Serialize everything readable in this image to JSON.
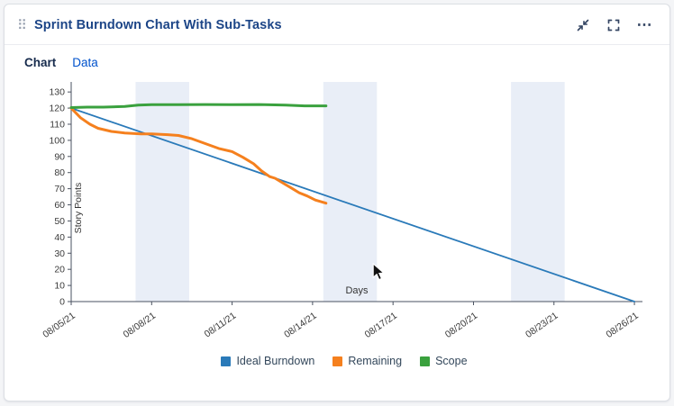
{
  "card": {
    "title": "Sprint Burndown Chart With Sub-Tasks",
    "actions": {
      "drag_glyph": "⠿",
      "more_glyph": "⋯"
    },
    "tabs": [
      {
        "label": "Chart",
        "active": true
      },
      {
        "label": "Data",
        "active": false
      }
    ]
  },
  "chart_data": {
    "type": "line",
    "title": "",
    "xlabel": "Days",
    "ylabel": "Story Points",
    "x_axis": {
      "tick_days": [
        0,
        3,
        6,
        9,
        12,
        15,
        18,
        21
      ],
      "tick_labels": [
        "08/05/21",
        "08/08/21",
        "08/11/21",
        "08/14/21",
        "08/17/21",
        "08/20/21",
        "08/23/21",
        "08/26/21"
      ],
      "range_days": [
        0,
        21.3
      ]
    },
    "y_axis": {
      "ticks": [
        0,
        10,
        20,
        30,
        40,
        50,
        60,
        70,
        80,
        90,
        100,
        110,
        120,
        130
      ],
      "range": [
        0,
        134
      ]
    },
    "grid": false,
    "weekend_bands": [
      [
        2.4,
        4.4
      ],
      [
        9.4,
        11.4
      ],
      [
        16.4,
        18.4
      ]
    ],
    "band_color": "#e9eef7",
    "axis_color": "#4a5260",
    "tick_text_color": "#3b3b3b",
    "legend_position": "bottom",
    "series": [
      {
        "name": "Ideal Burndown",
        "color": "#2a7ab9",
        "width": 1.8,
        "points": [
          [
            0,
            120
          ],
          [
            21,
            0
          ]
        ]
      },
      {
        "name": "Remaining",
        "color": "#f5801e",
        "width": 3,
        "points": [
          [
            0,
            120
          ],
          [
            0.35,
            114
          ],
          [
            0.7,
            110
          ],
          [
            1,
            107.5
          ],
          [
            1.5,
            105.5
          ],
          [
            2,
            104.5
          ],
          [
            2.6,
            104
          ],
          [
            3,
            104
          ],
          [
            3.6,
            103.5
          ],
          [
            4,
            103
          ],
          [
            4.5,
            101
          ],
          [
            5,
            98
          ],
          [
            5.5,
            95
          ],
          [
            6,
            93
          ],
          [
            6.4,
            89.5
          ],
          [
            6.8,
            85.5
          ],
          [
            7.1,
            81
          ],
          [
            7.4,
            77.5
          ],
          [
            7.6,
            76.5
          ],
          [
            7.9,
            73.5
          ],
          [
            8.2,
            70.5
          ],
          [
            8.5,
            67.5
          ],
          [
            8.8,
            65.5
          ],
          [
            9.1,
            63
          ],
          [
            9.5,
            61
          ]
        ]
      },
      {
        "name": "Scope",
        "color": "#3aa13e",
        "width": 3,
        "points": [
          [
            0,
            120.3
          ],
          [
            0.6,
            120.6
          ],
          [
            1.2,
            120.6
          ],
          [
            2,
            121
          ],
          [
            2.5,
            121.9
          ],
          [
            3,
            122.1
          ],
          [
            4,
            122.1
          ],
          [
            5,
            122.2
          ],
          [
            6,
            122.1
          ],
          [
            7,
            122.2
          ],
          [
            8,
            121.9
          ],
          [
            8.7,
            121.4
          ],
          [
            9.5,
            121.4
          ]
        ]
      }
    ]
  }
}
